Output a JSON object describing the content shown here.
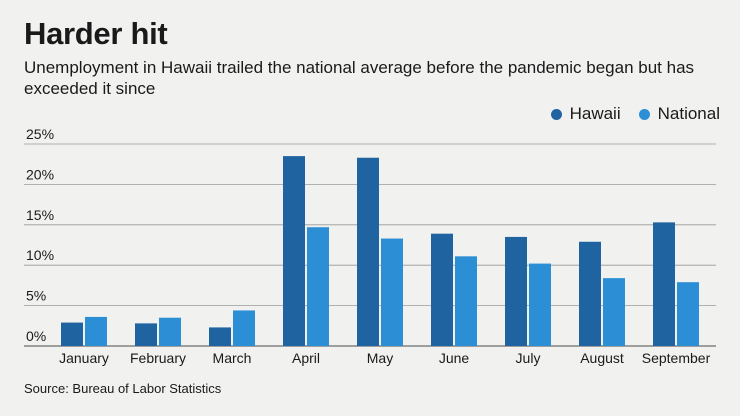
{
  "chart_data": {
    "type": "bar",
    "title": "Harder hit",
    "subtitle": "Unemployment in Hawaii trailed the national average before the pandemic began but has exceeded it since",
    "source": "Source: Bureau of Labor Statistics",
    "categories": [
      "January",
      "February",
      "March",
      "April",
      "May",
      "June",
      "July",
      "August",
      "September"
    ],
    "series": [
      {
        "name": "Hawaii",
        "color": "#1f64a0",
        "values": [
          2.9,
          2.8,
          2.3,
          23.5,
          23.3,
          13.9,
          13.5,
          12.9,
          15.3
        ]
      },
      {
        "name": "National",
        "color": "#2c8fd6",
        "values": [
          3.6,
          3.5,
          4.4,
          14.7,
          13.3,
          11.1,
          10.2,
          8.4,
          7.9
        ]
      }
    ],
    "yticks": [
      "0%",
      "5%",
      "10%",
      "15%",
      "20%",
      "25%"
    ],
    "ylim": [
      0,
      25
    ],
    "grid": true,
    "legend": "top-right"
  }
}
